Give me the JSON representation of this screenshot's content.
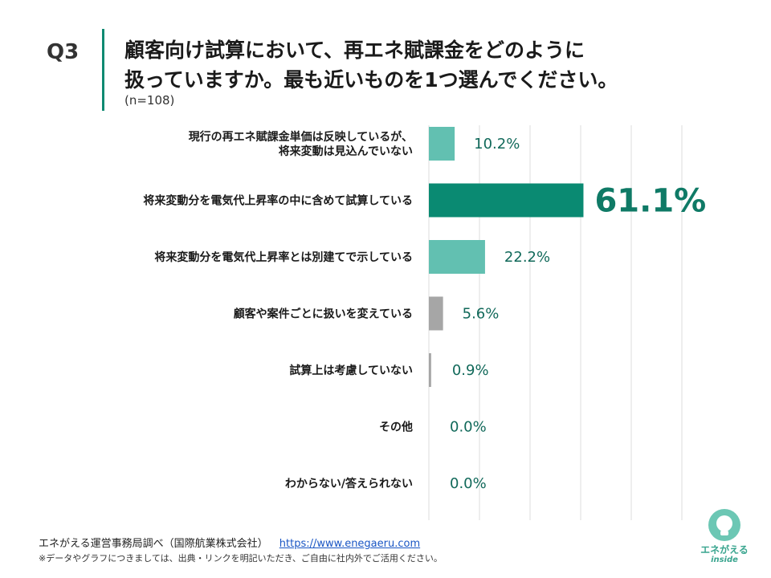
{
  "header": {
    "question_no": "Q3",
    "title_line1": "顧客向け試算において、再エネ賦課金をどのように",
    "title_line2": "扱っていますか。最も近いものを1つ選んでください。",
    "sample": "(n=108)"
  },
  "chart_data": {
    "type": "bar",
    "orientation": "horizontal",
    "categories": [
      [
        "現行の再エネ賦課金単価は反映しているが、",
        "将来変動は見込んでいない"
      ],
      [
        "将来変動分を電気代上昇率の中に含めて試算している"
      ],
      [
        "将来変動分を電気代上昇率とは別建てで示している"
      ],
      [
        "顧客や案件ごとに扱いを変えている"
      ],
      [
        "試算上は考慮していない"
      ],
      [
        "その他"
      ],
      [
        "わからない/答えられない"
      ]
    ],
    "values": [
      10.2,
      61.1,
      22.2,
      5.6,
      0.9,
      0.0,
      0.0
    ],
    "value_labels": [
      "10.2%",
      "61.1%",
      "22.2%",
      "5.6%",
      "0.9%",
      "0.0%",
      "0.0%"
    ],
    "xlim": [
      0,
      100
    ],
    "grid": true,
    "colors": [
      "#62c0b1",
      "#0a8a72",
      "#62c0b1",
      "#a6a6a6",
      "#a6a6a6",
      "#a6a6a6",
      "#a6a6a6"
    ]
  },
  "footer": {
    "source": "エネがえる運営事務局調べ（国際航業株式会社）",
    "url": "https://www.enegaeru.com",
    "note": "※データやグラフにつきましては、出典・リンクを明記いただき、ご自由に社内外でご活用ください。"
  },
  "logo": {
    "name": "エネがえる",
    "sub": "inside",
    "icon": "lightbulb-logo-icon"
  }
}
